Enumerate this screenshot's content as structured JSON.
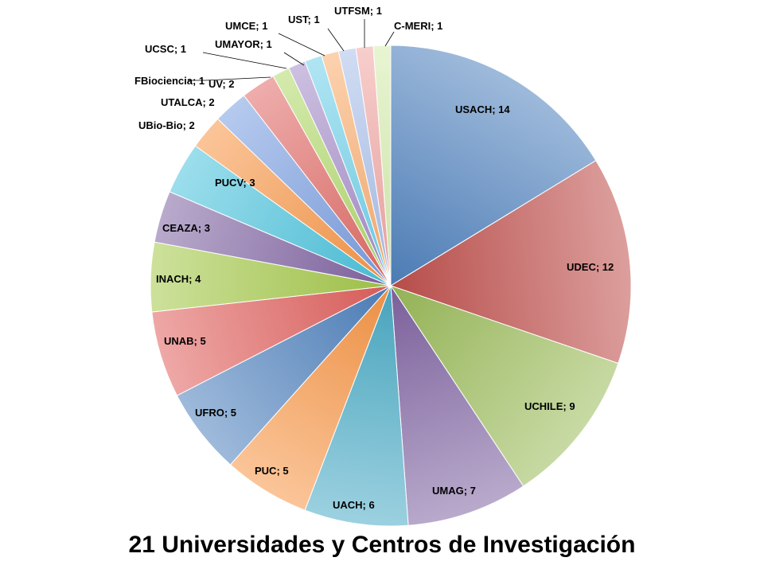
{
  "chart_data": {
    "type": "pie",
    "title": "21 Universidades  y Centros de Investigación",
    "slices": [
      {
        "label": "USACH",
        "value": 14,
        "text": "USACH; 14",
        "color": "#4f81bd"
      },
      {
        "label": "UDEC",
        "value": 12,
        "text": "UDEC; 12",
        "color": "#c0504d"
      },
      {
        "label": "UCHILE",
        "value": 9,
        "text": "UCHILE; 9",
        "color": "#9bbb59"
      },
      {
        "label": "UMAG",
        "value": 7,
        "text": "UMAG; 7",
        "color": "#8064a2"
      },
      {
        "label": "UACH",
        "value": 6,
        "text": "UACH; 6",
        "color": "#4bacc6"
      },
      {
        "label": "PUC",
        "value": 5,
        "text": "PUC; 5",
        "color": "#f79646"
      },
      {
        "label": "UFRO",
        "value": 5,
        "text": "UFRO; 5",
        "color": "#4f81bd"
      },
      {
        "label": "UNAB",
        "value": 5,
        "text": "UNAB; 5",
        "color": "#e0605d"
      },
      {
        "label": "INACH",
        "value": 4,
        "text": "INACH; 4",
        "color": "#a4c84a"
      },
      {
        "label": "CEAZA",
        "value": 3,
        "text": "CEAZA; 3",
        "color": "#8064a2"
      },
      {
        "label": "PUCV",
        "value": 3,
        "text": "PUCV; 3",
        "color": "#4bc3dc"
      },
      {
        "label": "UBio-Bio",
        "value": 2,
        "text": "UBio-Bio; 2",
        "color": "#f79646"
      },
      {
        "label": "UTALCA",
        "value": 2,
        "text": "UTALCA; 2",
        "color": "#7a9ee0"
      },
      {
        "label": "UV",
        "value": 2,
        "text": "UV; 2",
        "color": "#e06a66"
      },
      {
        "label": "FBiociencia",
        "value": 1,
        "text": "FBiociencia; 1",
        "color": "#b0d96a"
      },
      {
        "label": "UCSC",
        "value": 1,
        "text": "UCSC; 1",
        "color": "#a48cc8"
      },
      {
        "label": "UMAYOR",
        "value": 1,
        "text": "UMAYOR; 1",
        "color": "#6fd0ea"
      },
      {
        "label": "UMCE",
        "value": 1,
        "text": "UMCE; 1",
        "color": "#f9ad6e"
      },
      {
        "label": "UST",
        "value": 1,
        "text": "UST; 1",
        "color": "#a9c0ea"
      },
      {
        "label": "UTFSM",
        "value": 1,
        "text": "UTFSM; 1",
        "color": "#f0a5a3"
      },
      {
        "label": "C-MERI",
        "value": 1,
        "text": "C-MERI; 1",
        "color": "#d6ecae"
      }
    ]
  }
}
